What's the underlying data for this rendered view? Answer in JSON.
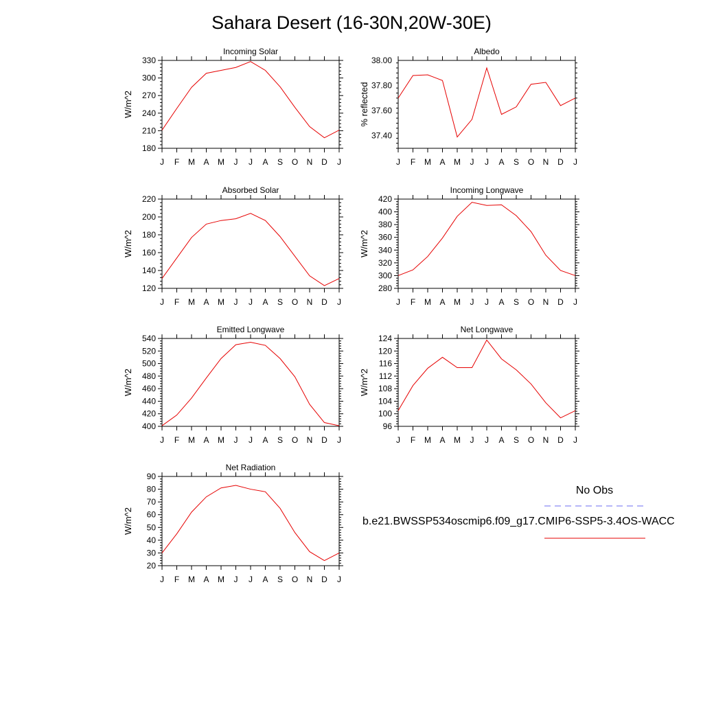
{
  "title": "Sahara Desert (16-30N,20W-30E)",
  "legend": {
    "obs_label": "No Obs",
    "obs_color": "#6b6bf0",
    "run_label": "b.e21.BWSSP534oscmip6.f09_g17.CMIP6-SSP5-3.4OS-WACC",
    "run_color": "#e60000"
  },
  "months": [
    "J",
    "F",
    "M",
    "A",
    "M",
    "J",
    "J",
    "A",
    "S",
    "O",
    "N",
    "D",
    "J"
  ],
  "chart_data": [
    {
      "type": "line",
      "title": "Incoming Solar",
      "ylabel": "W/m^2",
      "ylim": [
        180,
        330
      ],
      "yticks": [
        180,
        210,
        240,
        270,
        300,
        330
      ],
      "ytick_labels": [
        "180",
        "210",
        "240",
        "270",
        "300",
        "330"
      ],
      "categories": [
        "J",
        "F",
        "M",
        "A",
        "M",
        "J",
        "J",
        "A",
        "S",
        "O",
        "N",
        "D",
        "J"
      ],
      "values": [
        211,
        248,
        284,
        308,
        313,
        318,
        328,
        313,
        285,
        250,
        217,
        198,
        211
      ]
    },
    {
      "type": "line",
      "title": "Albedo",
      "ylabel": "% reflected",
      "ylim": [
        37.3,
        38.0
      ],
      "yticks": [
        37.4,
        37.6,
        37.8,
        38.0
      ],
      "ytick_labels": [
        "37.40",
        "37.60",
        "37.80",
        "38.00"
      ],
      "categories": [
        "J",
        "F",
        "M",
        "A",
        "M",
        "J",
        "J",
        "A",
        "S",
        "O",
        "N",
        "D",
        "J"
      ],
      "values": [
        37.7,
        37.88,
        37.885,
        37.84,
        37.39,
        37.53,
        37.94,
        37.57,
        37.63,
        37.81,
        37.825,
        37.64,
        37.7
      ]
    },
    {
      "type": "line",
      "title": "Absorbed Solar",
      "ylabel": "W/m^2",
      "ylim": [
        120,
        220
      ],
      "yticks": [
        120,
        140,
        160,
        180,
        200,
        220
      ],
      "ytick_labels": [
        "120",
        "140",
        "160",
        "180",
        "200",
        "220"
      ],
      "categories": [
        "J",
        "F",
        "M",
        "A",
        "M",
        "J",
        "J",
        "A",
        "S",
        "O",
        "N",
        "D",
        "J"
      ],
      "values": [
        131,
        154,
        177,
        192,
        196,
        198,
        204,
        196,
        178,
        156,
        134,
        123,
        131
      ]
    },
    {
      "type": "line",
      "title": "Incoming Longwave",
      "ylabel": "W/m^2",
      "ylim": [
        280,
        420
      ],
      "yticks": [
        280,
        300,
        320,
        340,
        360,
        380,
        400,
        420
      ],
      "ytick_labels": [
        "280",
        "300",
        "320",
        "340",
        "360",
        "380",
        "400",
        "420"
      ],
      "categories": [
        "J",
        "F",
        "M",
        "A",
        "M",
        "J",
        "J",
        "A",
        "S",
        "O",
        "N",
        "D",
        "J"
      ],
      "values": [
        300,
        309,
        330,
        359,
        393,
        415,
        410,
        411,
        394,
        369,
        332,
        308,
        300
      ]
    },
    {
      "type": "line",
      "title": "Emitted Longwave",
      "ylabel": "W/m^2",
      "ylim": [
        400,
        540
      ],
      "yticks": [
        400,
        420,
        440,
        460,
        480,
        500,
        520,
        540
      ],
      "ytick_labels": [
        "400",
        "420",
        "440",
        "460",
        "480",
        "500",
        "520",
        "540"
      ],
      "categories": [
        "J",
        "F",
        "M",
        "A",
        "M",
        "J",
        "J",
        "A",
        "S",
        "O",
        "N",
        "D",
        "J"
      ],
      "values": [
        401,
        418,
        445,
        477,
        508,
        530,
        534,
        529,
        508,
        479,
        435,
        406,
        401
      ]
    },
    {
      "type": "line",
      "title": "Net Longwave",
      "ylabel": "W/m^2",
      "ylim": [
        96,
        124
      ],
      "yticks": [
        96,
        100,
        104,
        108,
        112,
        116,
        120,
        124
      ],
      "ytick_labels": [
        "96",
        "100",
        "104",
        "108",
        "112",
        "116",
        "120",
        "124"
      ],
      "categories": [
        "J",
        "F",
        "M",
        "A",
        "M",
        "J",
        "J",
        "A",
        "S",
        "O",
        "N",
        "D",
        "J"
      ],
      "values": [
        101,
        109,
        114.5,
        118,
        114.7,
        114.7,
        123.5,
        117.5,
        114,
        109.5,
        103.5,
        98.7,
        101
      ]
    },
    {
      "type": "line",
      "title": "Net Radiation",
      "ylabel": "W/m^2",
      "ylim": [
        20,
        90
      ],
      "yticks": [
        20,
        30,
        40,
        50,
        60,
        70,
        80,
        90
      ],
      "ytick_labels": [
        "20",
        "30",
        "40",
        "50",
        "60",
        "70",
        "80",
        "90"
      ],
      "categories": [
        "J",
        "F",
        "M",
        "A",
        "M",
        "J",
        "J",
        "A",
        "S",
        "O",
        "N",
        "D",
        "J"
      ],
      "values": [
        30,
        45,
        62,
        74,
        81,
        83,
        80,
        78,
        65,
        46,
        31,
        24,
        30
      ]
    }
  ]
}
